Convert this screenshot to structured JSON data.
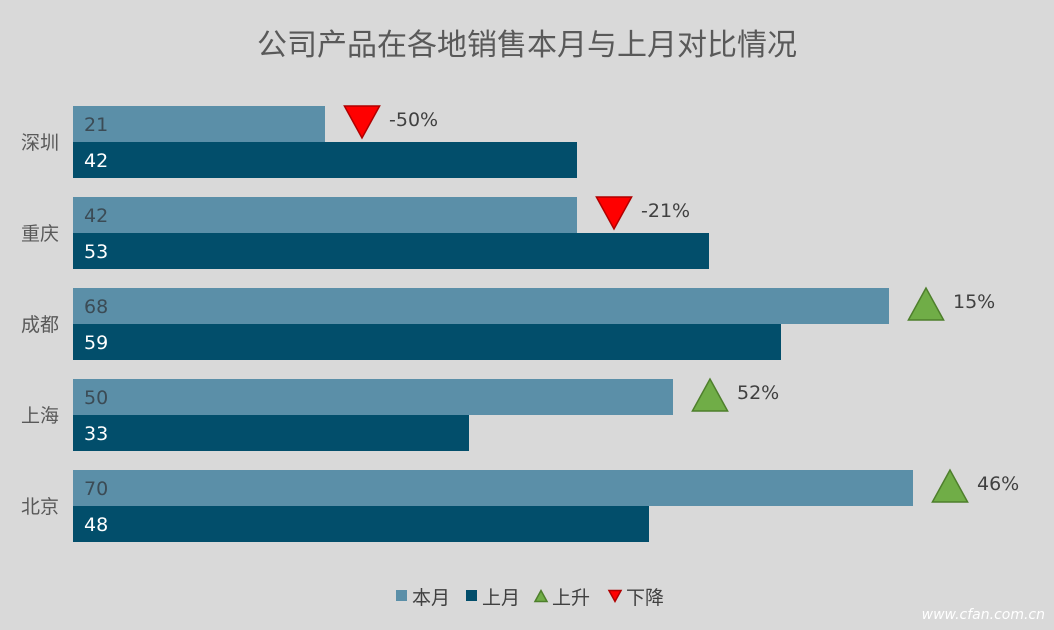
{
  "chart_data": {
    "type": "bar",
    "orientation": "horizontal",
    "title": "公司产品在各地销售本月与上月对比情况",
    "categories": [
      "深圳",
      "重庆",
      "成都",
      "上海",
      "北京"
    ],
    "series": [
      {
        "name": "本月",
        "values": [
          21,
          42,
          68,
          50,
          70
        ],
        "color": "#5b8fa8"
      },
      {
        "name": "上月",
        "values": [
          42,
          53,
          59,
          33,
          48
        ],
        "color": "#024e6b"
      }
    ],
    "change": {
      "labels": [
        "-50%",
        "-21%",
        "15%",
        "52%",
        "46%"
      ],
      "direction": [
        "down",
        "down",
        "up",
        "up",
        "up"
      ]
    },
    "markers": {
      "up": {
        "name": "上升",
        "color": "#70ad47"
      },
      "down": {
        "name": "下降",
        "color": "#ff0000"
      }
    },
    "xlim": [
      0,
      70
    ],
    "grid": false,
    "legend_position": "bottom"
  },
  "watermark": "www.cfan.com.cn"
}
